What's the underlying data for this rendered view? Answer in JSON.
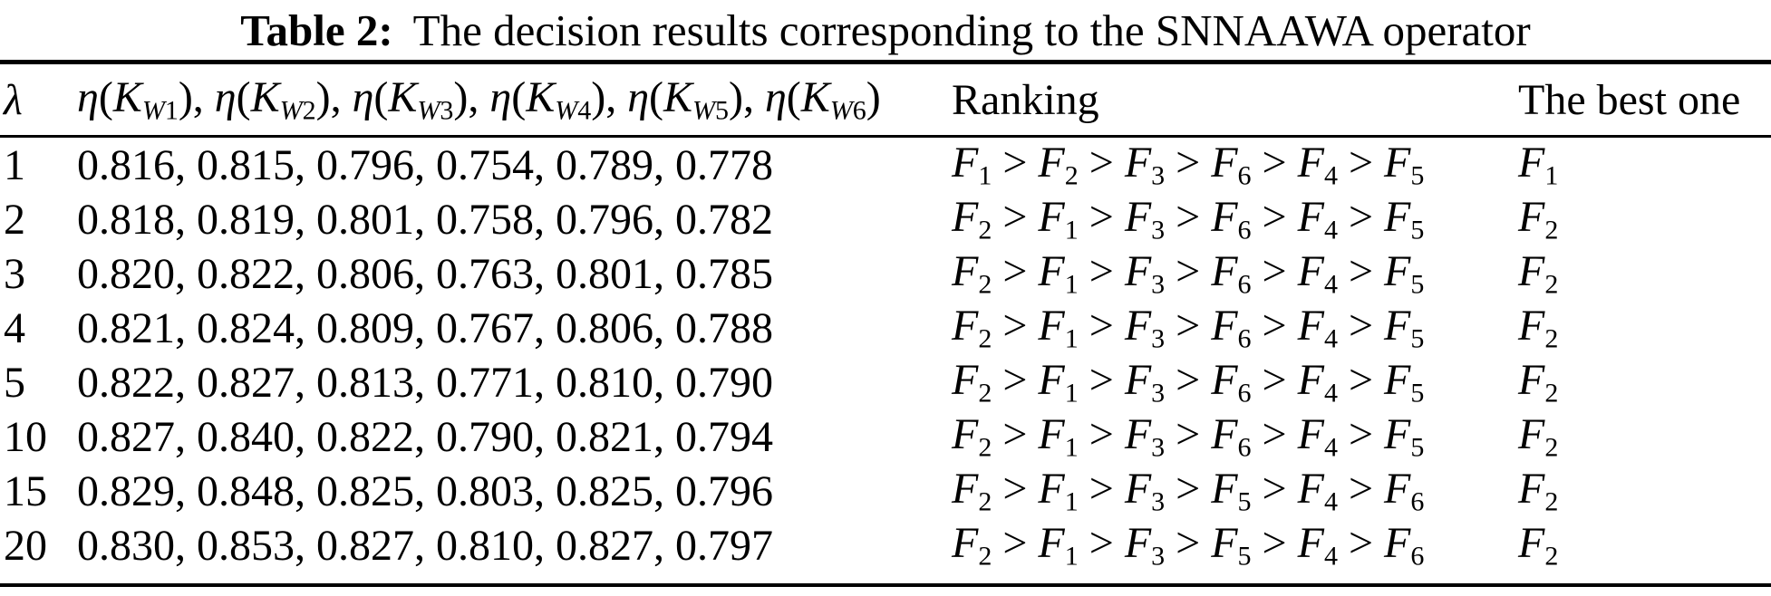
{
  "title": {
    "label": "Table 2:",
    "text": "The decision results corresponding to the SNNAAWA operator"
  },
  "header": {
    "lambda": "λ",
    "eta_symbol": "η",
    "k_symbol": "K",
    "open_paren": "(",
    "close_paren": ")",
    "separator": ", ",
    "eta_subscripts": [
      "W1",
      "W2",
      "W3",
      "W4",
      "W5",
      "W6"
    ],
    "ranking": "Ranking",
    "best": "The best one"
  },
  "math": {
    "f_symbol": "F",
    "gt_separator": " > ",
    "score_separator": ", "
  },
  "rows": [
    {
      "lambda": "1",
      "scores": [
        "0.816",
        "0.815",
        "0.796",
        "0.754",
        "0.789",
        "0.778"
      ],
      "ranking": [
        1,
        2,
        3,
        6,
        4,
        5
      ],
      "best": 1
    },
    {
      "lambda": "2",
      "scores": [
        "0.818",
        "0.819",
        "0.801",
        "0.758",
        "0.796",
        "0.782"
      ],
      "ranking": [
        2,
        1,
        3,
        6,
        4,
        5
      ],
      "best": 2
    },
    {
      "lambda": "3",
      "scores": [
        "0.820",
        "0.822",
        "0.806",
        "0.763",
        "0.801",
        "0.785"
      ],
      "ranking": [
        2,
        1,
        3,
        6,
        4,
        5
      ],
      "best": 2
    },
    {
      "lambda": "4",
      "scores": [
        "0.821",
        "0.824",
        "0.809",
        "0.767",
        "0.806",
        "0.788"
      ],
      "ranking": [
        2,
        1,
        3,
        6,
        4,
        5
      ],
      "best": 2
    },
    {
      "lambda": "5",
      "scores": [
        "0.822",
        "0.827",
        "0.813",
        "0.771",
        "0.810",
        "0.790"
      ],
      "ranking": [
        2,
        1,
        3,
        6,
        4,
        5
      ],
      "best": 2
    },
    {
      "lambda": "10",
      "scores": [
        "0.827",
        "0.840",
        "0.822",
        "0.790",
        "0.821",
        "0.794"
      ],
      "ranking": [
        2,
        1,
        3,
        6,
        4,
        5
      ],
      "best": 2
    },
    {
      "lambda": "15",
      "scores": [
        "0.829",
        "0.848",
        "0.825",
        "0.803",
        "0.825",
        "0.796"
      ],
      "ranking": [
        2,
        1,
        3,
        5,
        4,
        6
      ],
      "best": 2
    },
    {
      "lambda": "20",
      "scores": [
        "0.830",
        "0.853",
        "0.827",
        "0.810",
        "0.827",
        "0.797"
      ],
      "ranking": [
        2,
        1,
        3,
        5,
        4,
        6
      ],
      "best": 2
    }
  ],
  "colors": {
    "text": "#000000",
    "background": "#ffffff",
    "rule": "#000000"
  }
}
